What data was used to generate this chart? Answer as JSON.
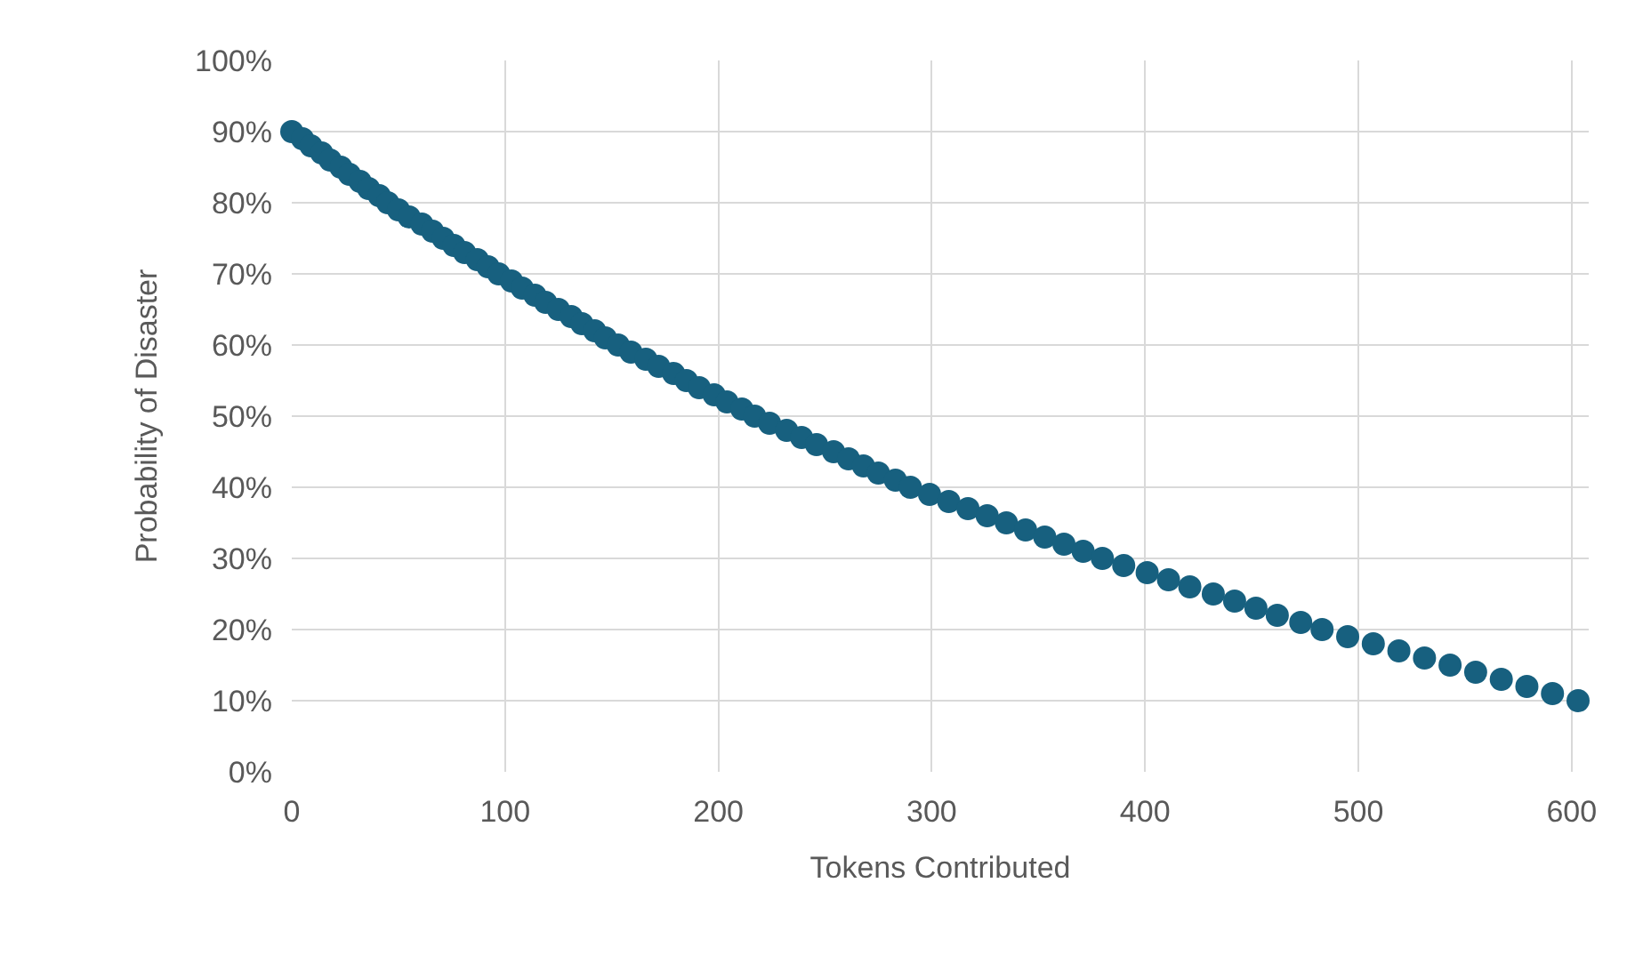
{
  "chart_data": {
    "type": "scatter",
    "xlabel": "Tokens Contributed",
    "ylabel": "Probability of Disaster",
    "marker": "circle",
    "grid": true,
    "xlim": [
      0,
      608
    ],
    "xticks": [
      0,
      100,
      200,
      300,
      400,
      500,
      600
    ],
    "ylim": [
      0,
      100
    ],
    "yticks": [
      {
        "value": 0,
        "label": "0%"
      },
      {
        "value": 10,
        "label": "10%"
      },
      {
        "value": 20,
        "label": "20%"
      },
      {
        "value": 30,
        "label": "30%"
      },
      {
        "value": 40,
        "label": "40%"
      },
      {
        "value": 50,
        "label": "50%"
      },
      {
        "value": 60,
        "label": "60%"
      },
      {
        "value": 70,
        "label": "70%"
      },
      {
        "value": 80,
        "label": "80%"
      },
      {
        "value": 90,
        "label": "90%"
      },
      {
        "value": 100,
        "label": "100%"
      }
    ],
    "x": [
      0,
      5,
      9,
      14,
      18,
      23,
      27,
      32,
      36,
      41,
      45,
      50,
      55,
      61,
      66,
      71,
      76,
      81,
      87,
      92,
      97,
      103,
      108,
      114,
      119,
      125,
      131,
      136,
      142,
      147,
      153,
      159,
      166,
      172,
      179,
      185,
      191,
      198,
      204,
      211,
      217,
      224,
      232,
      239,
      246,
      254,
      261,
      268,
      275,
      283,
      290,
      299,
      308,
      317,
      326,
      335,
      344,
      353,
      362,
      371,
      380,
      390,
      401,
      411,
      421,
      432,
      442,
      452,
      462,
      473,
      483,
      495,
      507,
      519,
      531,
      543,
      555,
      567,
      579,
      591,
      603
    ],
    "series": [
      {
        "color": "#17607f",
        "values": [
          90,
          89,
          88,
          87,
          86,
          85,
          84,
          83,
          82,
          81,
          80,
          79,
          78,
          77,
          76,
          75,
          74,
          73,
          72,
          71,
          70,
          69,
          68,
          67,
          66,
          65,
          64,
          63,
          62,
          61,
          60,
          59,
          58,
          57,
          56,
          55,
          54,
          53,
          52,
          51,
          50,
          49,
          48,
          47,
          46,
          45,
          44,
          43,
          42,
          41,
          40,
          39,
          38,
          37,
          36,
          35,
          34,
          33,
          32,
          31,
          30,
          29,
          28,
          27,
          26,
          25,
          24,
          23,
          22,
          21,
          20,
          19,
          18,
          17,
          16,
          15,
          14,
          13,
          12,
          11,
          10
        ]
      }
    ]
  }
}
